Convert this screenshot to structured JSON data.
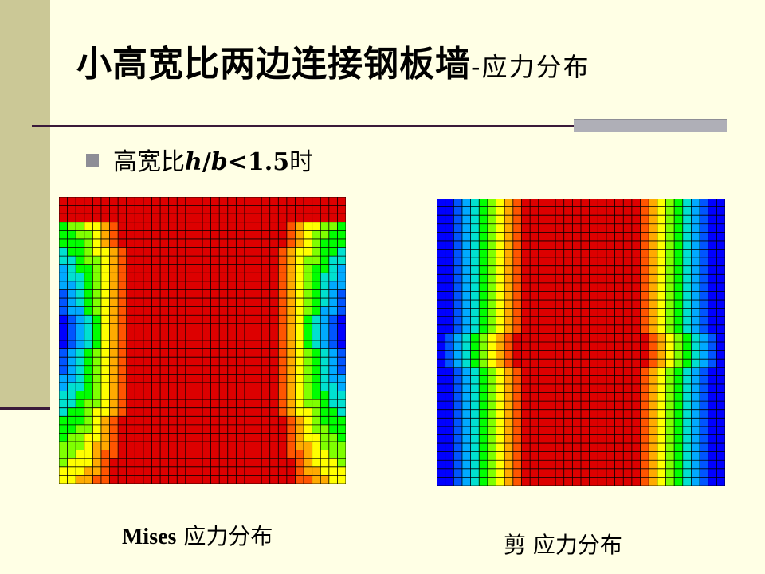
{
  "slide": {
    "title_main": "小高宽比两边连接钢板墙",
    "title_sub": "-应力分布",
    "bullet": {
      "text": "高宽比",
      "h": "h",
      "slash": "/",
      "b": "b",
      "ratio": "<1.5",
      "suffix": "时"
    }
  },
  "figures": [
    {
      "id": "mises",
      "caption_bold": "Mises",
      "caption_rest": " 应力分布"
    },
    {
      "id": "shear",
      "caption": "剪 应力分布"
    }
  ],
  "colors": {
    "background": "#FFFFE5",
    "left_band": "#CBC896",
    "rule": "#3A1A3A",
    "grey_bar": "#AFAFB7",
    "contour_scale": [
      "#0000FF",
      "#0055FF",
      "#00AAFF",
      "#00E0D0",
      "#00FF00",
      "#7FFF00",
      "#FFFF00",
      "#FFAA00",
      "#FF5500",
      "#DD0000"
    ]
  }
}
